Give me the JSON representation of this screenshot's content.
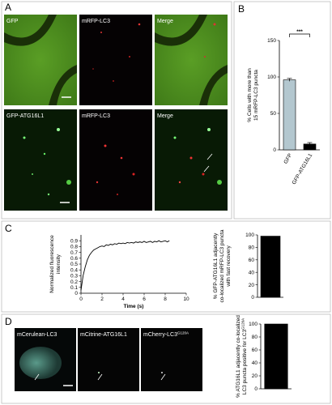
{
  "panel_labels": [
    "A",
    "B",
    "C",
    "D"
  ],
  "panels": {
    "A": {
      "images": [
        "GFP",
        "mRFP-LC3",
        "Merge",
        "GFP-ATG16L1",
        "mRFP-LC3",
        "Merge"
      ]
    },
    "D": {
      "images": [
        "mCerulean-LC3",
        "mCitrine-ATG16L1",
        "mCherry-LC3"
      ],
      "image_sup": "G120A"
    }
  },
  "chart_data": [
    {
      "type": "bar",
      "ylabel": [
        "% Cells with more than",
        "15 mRFP-LC3 puncta"
      ],
      "categories": [
        "GFP",
        "GFP-ATG16L1"
      ],
      "values": [
        96,
        8
      ],
      "errors": [
        2,
        2
      ],
      "colors": [
        "#b3c7cf",
        "#000000"
      ],
      "annotation": "***",
      "ylim": [
        0,
        150
      ],
      "yticks": [
        0,
        50,
        100,
        150
      ]
    },
    {
      "type": "line",
      "ylabel": [
        "Normalized fluorescence",
        "intensity"
      ],
      "xlabel": "Time (s)",
      "x": [
        0,
        0.2,
        0.4,
        0.6,
        0.8,
        1.0,
        1.2,
        1.4,
        1.6,
        1.8,
        2.0,
        2.2,
        2.4,
        2.6,
        2.8,
        3.0,
        3.2,
        3.4,
        3.6,
        3.8,
        4.0,
        4.2,
        4.4,
        4.6,
        4.8,
        5.0,
        5.2,
        5.4,
        5.6,
        5.8,
        6.0,
        6.2,
        6.4,
        6.6,
        6.8,
        7.0,
        7.2,
        7.4,
        7.6,
        7.8,
        8.0,
        8.2,
        8.4
      ],
      "values": [
        0.05,
        0.3,
        0.45,
        0.57,
        0.65,
        0.7,
        0.74,
        0.76,
        0.78,
        0.8,
        0.81,
        0.8,
        0.83,
        0.82,
        0.84,
        0.83,
        0.85,
        0.84,
        0.86,
        0.85,
        0.86,
        0.85,
        0.87,
        0.86,
        0.87,
        0.86,
        0.88,
        0.87,
        0.88,
        0.87,
        0.89,
        0.87,
        0.88,
        0.89,
        0.87,
        0.89,
        0.88,
        0.9,
        0.88,
        0.89,
        0.9,
        0.88,
        0.9
      ],
      "color": "#000000",
      "xlim": [
        0,
        10
      ],
      "xticks": [
        0,
        2,
        4,
        6,
        8,
        10
      ],
      "ylim": [
        0,
        1
      ],
      "yticks": [
        0,
        0.1,
        0.2,
        0.3,
        0.4,
        0.5,
        0.6,
        0.7,
        0.8,
        0.9
      ]
    },
    {
      "type": "bar",
      "ylabel": [
        "% GFP-ATG16L1 adjacently",
        "co-localized mRFP-LC3 puncta",
        "with fast recovery"
      ],
      "categories": [
        null
      ],
      "values": [
        98
      ],
      "colors": [
        "#000000"
      ],
      "ylim": [
        0,
        100
      ],
      "yticks": [
        0,
        20,
        40,
        60,
        80,
        100
      ]
    },
    {
      "type": "bar",
      "ylabel": [
        "% ATG16L1 adjacently co-localized",
        "LC3 puncta positive for LC3"
      ],
      "ylabel_sup": "G120A",
      "categories": [
        null
      ],
      "values": [
        100
      ],
      "colors": [
        "#000000"
      ],
      "ylim": [
        0,
        100
      ],
      "yticks": [
        0,
        20,
        40,
        60,
        80,
        100
      ]
    }
  ]
}
